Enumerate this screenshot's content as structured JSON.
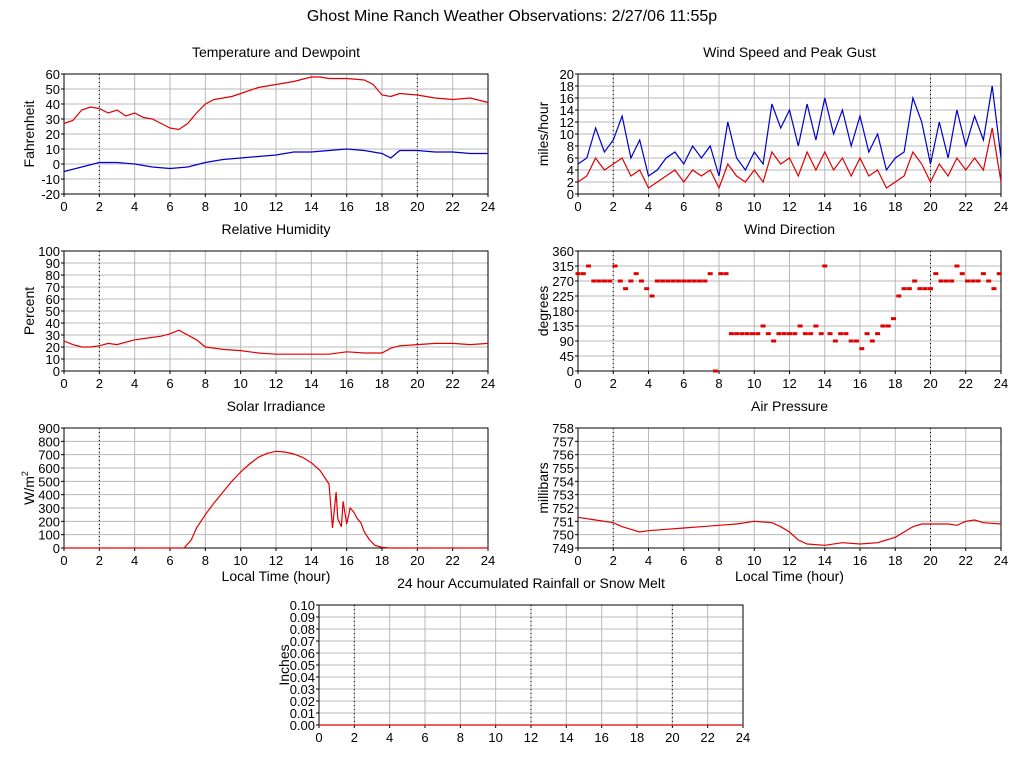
{
  "page_title": "Ghost Mine Ranch Weather Observations: 2/27/06 11:55p",
  "colors": {
    "red": "#e00000",
    "blue": "#0000cc",
    "grid": "#b8b8b8",
    "dotted": "#000000"
  },
  "chart_data": [
    {
      "id": "temperature",
      "type": "line",
      "title": "Temperature and Dewpoint",
      "xlabel": "",
      "ylabel": "Fahrenheit",
      "xlim": [
        0,
        24
      ],
      "ylim": [
        -20,
        60
      ],
      "yticks": [
        -20,
        -10,
        0,
        10,
        20,
        30,
        40,
        50,
        60
      ],
      "xticks": [
        0,
        2,
        4,
        6,
        8,
        10,
        12,
        14,
        16,
        18,
        20,
        22,
        24
      ],
      "series": [
        {
          "color": "red",
          "x": [
            0,
            0.5,
            1,
            1.5,
            2,
            2.5,
            3,
            3.5,
            4,
            4.5,
            5,
            5.5,
            6,
            6.5,
            7,
            7.5,
            8,
            8.5,
            9,
            9.5,
            10,
            11,
            12,
            13,
            14,
            14.5,
            15,
            16,
            17,
            17.5,
            18,
            18.5,
            19,
            20,
            21,
            22,
            23,
            24
          ],
          "values": [
            27,
            29,
            36,
            38,
            37,
            34,
            36,
            32,
            34,
            31,
            30,
            27,
            24,
            23,
            27,
            34,
            40,
            43,
            44,
            45,
            47,
            51,
            53,
            55,
            58,
            58,
            57,
            57,
            56,
            53,
            46,
            45,
            47,
            46,
            44,
            43,
            44,
            41
          ]
        },
        {
          "color": "blue",
          "x": [
            0,
            1,
            2,
            3,
            4,
            5,
            6,
            7,
            8,
            9,
            10,
            11,
            12,
            13,
            14,
            15,
            16,
            17,
            18,
            18.5,
            19,
            20,
            21,
            22,
            23,
            24
          ],
          "values": [
            -5,
            -2,
            1,
            1,
            0,
            -2,
            -3,
            -2,
            1,
            3,
            4,
            5,
            6,
            8,
            8,
            9,
            10,
            9,
            7,
            4,
            9,
            9,
            8,
            8,
            7,
            7
          ]
        }
      ]
    },
    {
      "id": "wind_speed",
      "type": "line",
      "title": "Wind Speed and Peak Gust",
      "xlabel": "",
      "ylabel": "miles/hour",
      "xlim": [
        0,
        24
      ],
      "ylim": [
        0,
        20
      ],
      "yticks": [
        0,
        2,
        4,
        6,
        8,
        10,
        12,
        14,
        16,
        18,
        20
      ],
      "xticks": [
        0,
        2,
        4,
        6,
        8,
        10,
        12,
        14,
        16,
        18,
        20,
        22,
        24
      ],
      "series": [
        {
          "color": "blue",
          "x": [
            0,
            0.5,
            1,
            1.5,
            2,
            2.5,
            3,
            3.5,
            4,
            4.5,
            5,
            5.5,
            6,
            6.5,
            7,
            7.5,
            8,
            8.5,
            9,
            9.5,
            10,
            10.5,
            11,
            11.5,
            12,
            12.5,
            13,
            13.5,
            14,
            14.5,
            15,
            15.5,
            16,
            16.5,
            17,
            17.5,
            18,
            18.5,
            19,
            19.5,
            20,
            20.5,
            21,
            21.5,
            22,
            22.5,
            23,
            23.5,
            24
          ],
          "values": [
            5,
            6,
            11,
            7,
            9,
            13,
            6,
            9,
            3,
            4,
            6,
            7,
            5,
            8,
            6,
            8,
            3,
            12,
            6,
            4,
            7,
            5,
            15,
            11,
            14,
            8,
            15,
            9,
            16,
            10,
            14,
            8,
            13,
            7,
            10,
            4,
            6,
            7,
            16,
            12,
            5,
            12,
            6,
            14,
            8,
            13,
            9,
            18,
            6
          ]
        },
        {
          "color": "red",
          "x": [
            0,
            0.5,
            1,
            1.5,
            2,
            2.5,
            3,
            3.5,
            4,
            4.5,
            5,
            5.5,
            6,
            6.5,
            7,
            7.5,
            8,
            8.5,
            9,
            9.5,
            10,
            10.5,
            11,
            11.5,
            12,
            12.5,
            13,
            13.5,
            14,
            14.5,
            15,
            15.5,
            16,
            16.5,
            17,
            17.5,
            18,
            18.5,
            19,
            19.5,
            20,
            20.5,
            21,
            21.5,
            22,
            22.5,
            23,
            23.5,
            24
          ],
          "values": [
            2,
            3,
            6,
            4,
            5,
            6,
            3,
            4,
            1,
            2,
            3,
            4,
            2,
            4,
            3,
            4,
            1,
            5,
            3,
            2,
            4,
            2,
            7,
            5,
            6,
            3,
            7,
            4,
            7,
            4,
            6,
            3,
            6,
            3,
            4,
            1,
            2,
            3,
            7,
            5,
            2,
            5,
            3,
            6,
            4,
            6,
            4,
            11,
            2
          ]
        }
      ]
    },
    {
      "id": "humidity",
      "type": "line",
      "title": "Relative Humidity",
      "xlabel": "",
      "ylabel": "Percent",
      "xlim": [
        0,
        24
      ],
      "ylim": [
        0,
        100
      ],
      "yticks": [
        0,
        10,
        20,
        30,
        40,
        50,
        60,
        70,
        80,
        90,
        100
      ],
      "xticks": [
        0,
        2,
        4,
        6,
        8,
        10,
        12,
        14,
        16,
        18,
        20,
        22,
        24
      ],
      "series": [
        {
          "color": "red",
          "x": [
            0,
            0.5,
            1,
            1.5,
            2,
            2.5,
            3,
            3.5,
            4,
            4.5,
            5,
            5.5,
            6,
            6.5,
            7,
            7.5,
            8,
            8.5,
            9,
            10,
            11,
            12,
            13,
            14,
            15,
            16,
            17,
            18,
            18.5,
            19,
            20,
            21,
            22,
            23,
            24
          ],
          "values": [
            25,
            22,
            20,
            20,
            21,
            23,
            22,
            24,
            26,
            27,
            28,
            29,
            31,
            34,
            30,
            26,
            20,
            19,
            18,
            17,
            15,
            14,
            14,
            14,
            14,
            16,
            15,
            15,
            19,
            21,
            22,
            23,
            23,
            22,
            23
          ]
        }
      ]
    },
    {
      "id": "wind_direction",
      "type": "scatter",
      "title": "Wind Direction",
      "xlabel": "",
      "ylabel": "degrees",
      "xlim": [
        0,
        24
      ],
      "ylim": [
        0,
        360
      ],
      "yticks": [
        0,
        45,
        90,
        135,
        180,
        225,
        270,
        315,
        360
      ],
      "xticks": [
        0,
        2,
        4,
        6,
        8,
        10,
        12,
        14,
        16,
        18,
        20,
        22,
        24
      ],
      "series": [
        {
          "color": "red",
          "x": [
            0,
            0.3,
            0.6,
            0.9,
            1.2,
            1.5,
            1.8,
            2.1,
            2.4,
            2.7,
            3,
            3.3,
            3.6,
            3.9,
            4.2,
            4.5,
            4.8,
            5.1,
            5.4,
            5.7,
            6,
            6.3,
            6.6,
            6.9,
            7.2,
            7.5,
            7.8,
            8.1,
            8.4,
            8.7,
            9,
            9.3,
            9.6,
            9.9,
            10.2,
            10.5,
            10.8,
            11.1,
            11.4,
            11.7,
            12,
            12.3,
            12.6,
            12.9,
            13.2,
            13.5,
            13.8,
            14,
            14.3,
            14.6,
            14.9,
            15.2,
            15.5,
            15.8,
            16.1,
            16.4,
            16.7,
            17,
            17.3,
            17.6,
            17.9,
            18.2,
            18.5,
            18.8,
            19.1,
            19.4,
            19.7,
            20,
            20.3,
            20.6,
            20.9,
            21.2,
            21.5,
            21.8,
            22.1,
            22.4,
            22.7,
            23,
            23.3,
            23.6,
            23.9
          ],
          "values": [
            292,
            292,
            315,
            270,
            270,
            270,
            270,
            315,
            270,
            247,
            270,
            292,
            270,
            247,
            225,
            270,
            270,
            270,
            270,
            270,
            270,
            270,
            270,
            270,
            270,
            292,
            0,
            292,
            292,
            112,
            112,
            112,
            112,
            112,
            112,
            135,
            112,
            90,
            112,
            112,
            112,
            112,
            135,
            112,
            112,
            135,
            112,
            315,
            112,
            90,
            112,
            112,
            90,
            90,
            67,
            112,
            90,
            112,
            135,
            135,
            157,
            225,
            247,
            247,
            270,
            247,
            247,
            247,
            292,
            270,
            270,
            270,
            315,
            292,
            270,
            270,
            270,
            292,
            270,
            247,
            292
          ]
        }
      ]
    },
    {
      "id": "solar",
      "type": "line",
      "title": "Solar Irradiance",
      "xlabel": "Local Time (hour)",
      "ylabel": "W/m²",
      "ylabel_main": "W/m",
      "ylabel_sup": "2",
      "xlim": [
        0,
        24
      ],
      "ylim": [
        0,
        900
      ],
      "yticks": [
        0,
        100,
        200,
        300,
        400,
        500,
        600,
        700,
        800,
        900
      ],
      "xticks": [
        0,
        2,
        4,
        6,
        8,
        10,
        12,
        14,
        16,
        18,
        20,
        22,
        24
      ],
      "series": [
        {
          "color": "red",
          "x": [
            0,
            6.8,
            7.2,
            7.5,
            8,
            8.5,
            9,
            9.5,
            10,
            10.5,
            11,
            11.5,
            12,
            12.5,
            13,
            13.5,
            14,
            14.5,
            15,
            15.2,
            15.4,
            15.5,
            15.7,
            15.8,
            16,
            16.2,
            16.4,
            16.6,
            16.8,
            17,
            17.3,
            17.6,
            18,
            18.5,
            24
          ],
          "values": [
            0,
            0,
            60,
            150,
            250,
            340,
            420,
            500,
            570,
            630,
            680,
            710,
            725,
            720,
            705,
            680,
            640,
            580,
            480,
            150,
            420,
            220,
            160,
            350,
            180,
            300,
            270,
            220,
            190,
            120,
            60,
            20,
            5,
            0,
            0
          ]
        }
      ]
    },
    {
      "id": "pressure",
      "type": "line",
      "title": "Air Pressure",
      "xlabel": "Local Time (hour)",
      "ylabel": "millibars",
      "xlim": [
        0,
        24
      ],
      "ylim": [
        749,
        758
      ],
      "yticks": [
        749,
        750,
        751,
        752,
        753,
        754,
        755,
        756,
        757,
        758
      ],
      "xticks": [
        0,
        2,
        4,
        6,
        8,
        10,
        12,
        14,
        16,
        18,
        20,
        22,
        24
      ],
      "series": [
        {
          "color": "red",
          "x": [
            0,
            1,
            2,
            2.5,
            3,
            3.5,
            4,
            5,
            6,
            7,
            8,
            9,
            10,
            11,
            11.5,
            12,
            12.5,
            13,
            14,
            15,
            16,
            17,
            17.5,
            18,
            18.5,
            19,
            19.5,
            20,
            21,
            21.5,
            22,
            22.5,
            23,
            24
          ],
          "values": [
            751.3,
            751.1,
            750.9,
            750.6,
            750.4,
            750.2,
            750.3,
            750.4,
            750.5,
            750.6,
            750.7,
            750.8,
            751.0,
            750.9,
            750.6,
            750.2,
            749.6,
            749.3,
            749.2,
            749.4,
            749.3,
            749.4,
            749.6,
            749.8,
            750.2,
            750.6,
            750.8,
            750.8,
            750.8,
            750.7,
            751.0,
            751.1,
            750.9,
            750.8
          ]
        }
      ]
    },
    {
      "id": "rainfall",
      "type": "line",
      "title": "24 hour Accumulated Rainfall or Snow Melt",
      "xlabel": "",
      "ylabel": "Inches",
      "xlim": [
        0,
        24
      ],
      "ylim": [
        0,
        0.1
      ],
      "yticks": [
        0.0,
        0.01,
        0.02,
        0.03,
        0.04,
        0.05,
        0.06,
        0.07,
        0.08,
        0.09,
        0.1
      ],
      "ytick_labels": [
        "0.00",
        "0.01",
        "0.02",
        "0.03",
        "0.04",
        "0.05",
        "0.06",
        "0.07",
        "0.08",
        "0.09",
        "0.10"
      ],
      "xticks": [
        0,
        2,
        4,
        6,
        8,
        10,
        12,
        14,
        16,
        18,
        20,
        22,
        24
      ],
      "series": [
        {
          "color": "red",
          "x": [
            0,
            24
          ],
          "values": [
            0,
            0
          ]
        }
      ]
    }
  ]
}
